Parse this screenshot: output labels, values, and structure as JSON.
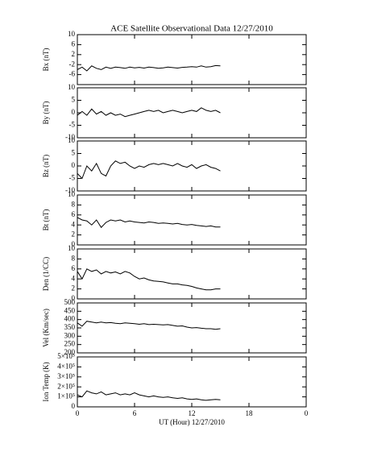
{
  "chart_data": [
    {
      "type": "line",
      "title": "ACE Satellite Observational Data   12/27/2010",
      "ylabel": "Bx (nT)",
      "color": "#000000",
      "ylim": [
        -10,
        10
      ],
      "yticks": [
        -6,
        -2,
        2,
        6,
        10
      ],
      "x": [
        0,
        0.5,
        1,
        1.5,
        2,
        2.5,
        3,
        3.5,
        4,
        4.5,
        5,
        5.5,
        6,
        6.5,
        7,
        7.5,
        8,
        8.5,
        9,
        9.5,
        10,
        10.5,
        11,
        11.5,
        12,
        12.5,
        13,
        13.5,
        14,
        14.5,
        15
      ],
      "values": [
        -4,
        -3,
        -4.5,
        -2.5,
        -3.5,
        -4,
        -3,
        -3.5,
        -3,
        -3.2,
        -3.5,
        -3,
        -3.3,
        -3.1,
        -3.4,
        -3,
        -3.2,
        -3.5,
        -3.3,
        -3,
        -3.2,
        -3.4,
        -3.1,
        -3,
        -2.8,
        -3,
        -2.5,
        -3,
        -2.8,
        -2.4,
        -2.5
      ]
    },
    {
      "type": "line",
      "ylabel": "By (nT)",
      "color": "#000000",
      "ylim": [
        -10,
        10
      ],
      "yticks": [
        -10,
        -5,
        0,
        5,
        10
      ],
      "x": [
        0,
        0.5,
        1,
        1.5,
        2,
        2.5,
        3,
        3.5,
        4,
        4.5,
        5,
        5.5,
        6,
        6.5,
        7,
        7.5,
        8,
        8.5,
        9,
        9.5,
        10,
        10.5,
        11,
        11.5,
        12,
        12.5,
        13,
        13.5,
        14,
        14.5,
        15
      ],
      "values": [
        -1,
        0.5,
        -1,
        1.5,
        -0.5,
        0.5,
        -1,
        0,
        -1,
        -0.5,
        -1.5,
        -1,
        -0.5,
        0,
        0.5,
        1,
        0.5,
        1,
        0,
        0.5,
        1,
        0.5,
        0,
        0.5,
        1,
        0.5,
        2,
        1,
        0.5,
        1,
        0
      ]
    },
    {
      "type": "line",
      "ylabel": "Bz (nT)",
      "color": "#000000",
      "ylim": [
        -10,
        10
      ],
      "yticks": [
        -10,
        -5,
        0,
        5,
        10
      ],
      "x": [
        0,
        0.5,
        1,
        1.5,
        2,
        2.5,
        3,
        3.5,
        4,
        4.5,
        5,
        5.5,
        6,
        6.5,
        7,
        7.5,
        8,
        8.5,
        9,
        9.5,
        10,
        10.5,
        11,
        11.5,
        12,
        12.5,
        13,
        13.5,
        14,
        14.5,
        15
      ],
      "values": [
        -3,
        -5,
        0,
        -2,
        1,
        -3,
        -4,
        0,
        2,
        1,
        1.5,
        0,
        -1,
        0,
        -0.5,
        0.5,
        1,
        0.5,
        1,
        0.5,
        0,
        1,
        0,
        -0.5,
        0.5,
        -1,
        0,
        0.5,
        -0.5,
        -1,
        -2
      ]
    },
    {
      "type": "line",
      "ylabel": "Bt (nT)",
      "color": "#000000",
      "ylim": [
        0,
        10
      ],
      "yticks": [
        0,
        2,
        4,
        6,
        8,
        10
      ],
      "x": [
        0,
        0.5,
        1,
        1.5,
        2,
        2.5,
        3,
        3.5,
        4,
        4.5,
        5,
        5.5,
        6,
        6.5,
        7,
        7.5,
        8,
        8.5,
        9,
        9.5,
        10,
        10.5,
        11,
        11.5,
        12,
        12.5,
        13,
        13.5,
        14,
        14.5,
        15
      ],
      "values": [
        5.5,
        5,
        4.8,
        4,
        5,
        3.5,
        4.5,
        5,
        4.8,
        5,
        4.6,
        4.8,
        4.6,
        4.5,
        4.4,
        4.6,
        4.5,
        4.3,
        4.4,
        4.3,
        4.2,
        4.3,
        4.1,
        4,
        4.1,
        3.9,
        3.8,
        3.7,
        3.8,
        3.6,
        3.6
      ]
    },
    {
      "type": "line",
      "ylabel": "Den (1/CC)",
      "color": "#000000",
      "ylim": [
        0,
        10
      ],
      "yticks": [
        0,
        2,
        4,
        6,
        8,
        10
      ],
      "x": [
        0,
        0.5,
        1,
        1.5,
        2,
        2.5,
        3,
        3.5,
        4,
        4.5,
        5,
        5.5,
        6,
        6.5,
        7,
        7.5,
        8,
        8.5,
        9,
        9.5,
        10,
        10.5,
        11,
        11.5,
        12,
        12.5,
        13,
        13.5,
        14,
        14.5,
        15
      ],
      "values": [
        5.5,
        4,
        6,
        5.5,
        5.8,
        5,
        5.5,
        5.2,
        5.4,
        5,
        5.5,
        5.2,
        4.5,
        4,
        4.2,
        3.8,
        3.6,
        3.5,
        3.4,
        3.2,
        3,
        3,
        2.8,
        2.7,
        2.5,
        2.2,
        2,
        1.8,
        1.8,
        2,
        2
      ]
    },
    {
      "type": "line",
      "ylabel": "Vel (Km/sec)",
      "color": "#000000",
      "ylim": [
        200,
        500
      ],
      "yticks": [
        200,
        250,
        300,
        350,
        400,
        450,
        500
      ],
      "x": [
        0,
        0.5,
        1,
        1.5,
        2,
        2.5,
        3,
        3.5,
        4,
        4.5,
        5,
        5.5,
        6,
        6.5,
        7,
        7.5,
        8,
        8.5,
        9,
        9.5,
        10,
        10.5,
        11,
        11.5,
        12,
        12.5,
        13,
        13.5,
        14,
        14.5,
        15
      ],
      "values": [
        380,
        360,
        390,
        385,
        380,
        385,
        380,
        382,
        378,
        375,
        380,
        378,
        375,
        372,
        375,
        370,
        372,
        370,
        368,
        370,
        365,
        360,
        362,
        355,
        350,
        352,
        348,
        345,
        345,
        342,
        345
      ]
    },
    {
      "type": "line",
      "ylabel": "Ion Temp (K)",
      "xlabel": "UT (Hour)   12/27/2010",
      "color": "#000000",
      "ylim": [
        0,
        500000
      ],
      "yticks": [
        0,
        {
          "value": 100000,
          "label": "1×10⁵"
        },
        {
          "value": 200000,
          "label": "2×10⁵"
        },
        {
          "value": 300000,
          "label": "3×10⁵"
        },
        {
          "value": 400000,
          "label": "4×10⁵"
        },
        {
          "value": 500000,
          "label": "5×10⁵"
        }
      ],
      "xlim": [
        0,
        24
      ],
      "xticks": [
        0,
        6,
        12,
        18,
        {
          "value": 24,
          "label": "0"
        }
      ],
      "x": [
        0,
        0.5,
        1,
        1.5,
        2,
        2.5,
        3,
        3.5,
        4,
        4.5,
        5,
        5.5,
        6,
        6.5,
        7,
        7.5,
        8,
        8.5,
        9,
        9.5,
        10,
        10.5,
        11,
        11.5,
        12,
        12.5,
        13,
        13.5,
        14,
        14.5,
        15
      ],
      "values": [
        120000,
        100000,
        160000,
        140000,
        130000,
        150000,
        120000,
        130000,
        140000,
        120000,
        130000,
        120000,
        140000,
        120000,
        110000,
        100000,
        110000,
        100000,
        95000,
        100000,
        90000,
        85000,
        90000,
        80000,
        75000,
        80000,
        70000,
        65000,
        70000,
        75000,
        70000
      ]
    }
  ]
}
